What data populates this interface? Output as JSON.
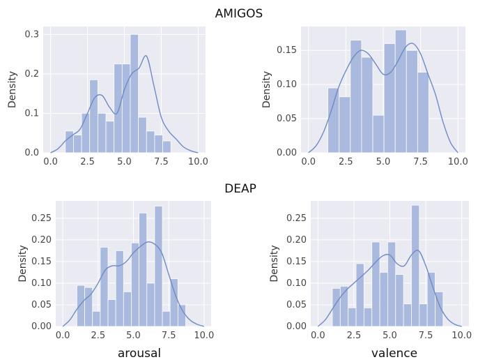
{
  "figure": {
    "section_titles": [
      "AMIGOS",
      "DEAP"
    ],
    "x_axis_labels": [
      "arousal",
      "valence"
    ]
  },
  "colors": {
    "panel_background": "#eaeaf2",
    "bar_fill": "#a6b8dd",
    "kde_line": "#6e8ac4",
    "grid": "#ffffff"
  },
  "chart_data": [
    {
      "type": "bar",
      "group": "AMIGOS",
      "xlabel": "",
      "ylabel": "Density",
      "xlim": [
        -0.5,
        10.5
      ],
      "ylim": [
        0,
        0.32
      ],
      "xticks": [
        "0.0",
        "2.5",
        "5.0",
        "7.5",
        "10.0"
      ],
      "yticks": [
        "0.0",
        "0.1",
        "0.2",
        "0.3"
      ],
      "bin_edges": [
        1.0,
        1.55,
        2.1,
        2.65,
        3.2,
        3.75,
        4.3,
        4.85,
        5.4,
        5.95,
        6.5,
        7.05,
        7.6,
        8.15,
        8.7
      ],
      "values": [
        0.055,
        0.045,
        0.1,
        0.185,
        0.1,
        0.08,
        0.225,
        0.225,
        0.3,
        0.09,
        0.055,
        0.045,
        0.03,
        0.0
      ],
      "kde": {
        "x": [
          0,
          0.5,
          1,
          1.5,
          2,
          2.5,
          3,
          3.5,
          4,
          4.5,
          5,
          5.5,
          6,
          6.5,
          7,
          7.5,
          8,
          8.5,
          9,
          9.5,
          10
        ],
        "y": [
          0.0,
          0.01,
          0.03,
          0.045,
          0.06,
          0.1,
          0.14,
          0.145,
          0.115,
          0.1,
          0.16,
          0.2,
          0.215,
          0.245,
          0.17,
          0.09,
          0.055,
          0.035,
          0.015,
          0.005,
          0.0
        ]
      }
    },
    {
      "type": "bar",
      "group": "AMIGOS",
      "xlabel": "",
      "ylabel": "Density",
      "xlim": [
        -0.5,
        10.5
      ],
      "ylim": [
        0,
        0.185
      ],
      "xticks": [
        "0.0",
        "2.5",
        "5.0",
        "7.5",
        "10.0"
      ],
      "yticks": [
        "0.00",
        "0.05",
        "0.10",
        "0.15"
      ],
      "bin_edges": [
        1.3,
        2.05,
        2.8,
        3.55,
        4.3,
        5.05,
        5.8,
        6.55,
        7.3,
        8.05,
        8.8
      ],
      "values": [
        0.095,
        0.082,
        0.165,
        0.14,
        0.055,
        0.16,
        0.18,
        0.15,
        0.118,
        0.0
      ],
      "kde": {
        "x": [
          0,
          0.5,
          1,
          1.5,
          2,
          2.5,
          3,
          3.5,
          4,
          4.5,
          5,
          5.5,
          6,
          6.5,
          7,
          7.5,
          8,
          8.5,
          9,
          9.5,
          10
        ],
        "y": [
          0.0,
          0.01,
          0.03,
          0.06,
          0.095,
          0.12,
          0.14,
          0.15,
          0.145,
          0.13,
          0.115,
          0.118,
          0.135,
          0.155,
          0.16,
          0.145,
          0.115,
          0.085,
          0.045,
          0.015,
          0.0
        ]
      }
    },
    {
      "type": "bar",
      "group": "DEAP",
      "xlabel": "arousal",
      "ylabel": "Density",
      "xlim": [
        -0.5,
        10.5
      ],
      "ylim": [
        0,
        0.29
      ],
      "xticks": [
        "0.0",
        "2.5",
        "5.0",
        "7.5",
        "10.0"
      ],
      "yticks": [
        "0.00",
        "0.05",
        "0.10",
        "0.15",
        "0.20",
        "0.25"
      ],
      "bin_edges": [
        1.0,
        1.55,
        2.1,
        2.65,
        3.2,
        3.75,
        4.3,
        4.85,
        5.4,
        5.95,
        6.5,
        7.05,
        7.6,
        8.15,
        8.7
      ],
      "values": [
        0.095,
        0.09,
        0.035,
        0.183,
        0.062,
        0.175,
        0.08,
        0.193,
        0.262,
        0.1,
        0.278,
        0.035,
        0.11,
        0.05
      ],
      "kde": {
        "x": [
          0,
          0.5,
          1,
          1.5,
          2,
          2.5,
          3,
          3.5,
          4,
          4.5,
          5,
          5.5,
          6,
          6.5,
          7,
          7.5,
          8,
          8.5,
          9,
          9.5,
          10
        ],
        "y": [
          0.0,
          0.015,
          0.04,
          0.06,
          0.075,
          0.1,
          0.13,
          0.14,
          0.14,
          0.15,
          0.17,
          0.185,
          0.195,
          0.19,
          0.17,
          0.12,
          0.07,
          0.035,
          0.015,
          0.005,
          0.0
        ]
      }
    },
    {
      "type": "bar",
      "group": "DEAP",
      "xlabel": "valence",
      "ylabel": "Density",
      "xlim": [
        -0.5,
        10.5
      ],
      "ylim": [
        0,
        0.29
      ],
      "xticks": [
        "0.0",
        "2.5",
        "5.0",
        "7.5",
        "10.0"
      ],
      "yticks": [
        "0.00",
        "0.05",
        "0.10",
        "0.15",
        "0.20",
        "0.25"
      ],
      "bin_edges": [
        1.0,
        1.55,
        2.1,
        2.65,
        3.2,
        3.75,
        4.3,
        4.85,
        5.4,
        5.95,
        6.5,
        7.05,
        7.6,
        8.15,
        8.7
      ],
      "values": [
        0.088,
        0.093,
        0.043,
        0.145,
        0.043,
        0.195,
        0.125,
        0.195,
        0.12,
        0.052,
        0.28,
        0.052,
        0.125,
        0.08
      ],
      "kde": {
        "x": [
          0,
          0.5,
          1,
          1.5,
          2,
          2.5,
          3,
          3.5,
          4,
          4.5,
          5,
          5.5,
          6,
          6.5,
          7,
          7.5,
          8,
          8.5,
          9,
          9.5,
          10
        ],
        "y": [
          0.0,
          0.015,
          0.04,
          0.065,
          0.085,
          0.1,
          0.115,
          0.13,
          0.148,
          0.163,
          0.165,
          0.145,
          0.14,
          0.165,
          0.175,
          0.14,
          0.09,
          0.045,
          0.018,
          0.005,
          0.0
        ]
      }
    }
  ]
}
